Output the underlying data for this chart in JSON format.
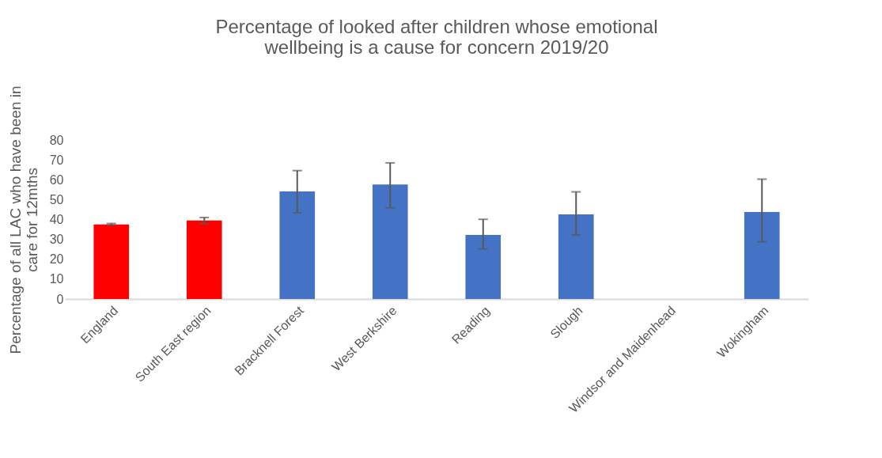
{
  "chart_data": {
    "type": "bar",
    "title": [
      "Percentage of looked after children whose emotional",
      "wellbeing is a cause for concern 2019/20"
    ],
    "ylabel": [
      "Percentage of all LAC who have been in",
      "care for 12mths"
    ],
    "categories": [
      "England",
      "South East region",
      "Bracknell Forest",
      "West Berkshire",
      "Reading",
      "Slough",
      "Windsor and Maidenhead",
      "Wokingham"
    ],
    "values": [
      37.5,
      39.5,
      54.1,
      57.6,
      32.2,
      42.6,
      null,
      43.8
    ],
    "colors": [
      "#ff0000",
      "#ff0000",
      "#4472c4",
      "#4472c4",
      "#4472c4",
      "#4472c4",
      "#4472c4",
      "#4472c4"
    ],
    "errors": [
      [
        37.2,
        38.0
      ],
      [
        37.9,
        41.0
      ],
      [
        43.4,
        64.6
      ],
      [
        45.9,
        68.5
      ],
      [
        25.3,
        40.1
      ],
      [
        32.2,
        53.9
      ],
      null,
      [
        28.8,
        60.3
      ]
    ],
    "ylim": [
      0,
      80
    ],
    "yticks": [
      0,
      10,
      20,
      30,
      40,
      50,
      60,
      70,
      80
    ],
    "grid": false
  }
}
